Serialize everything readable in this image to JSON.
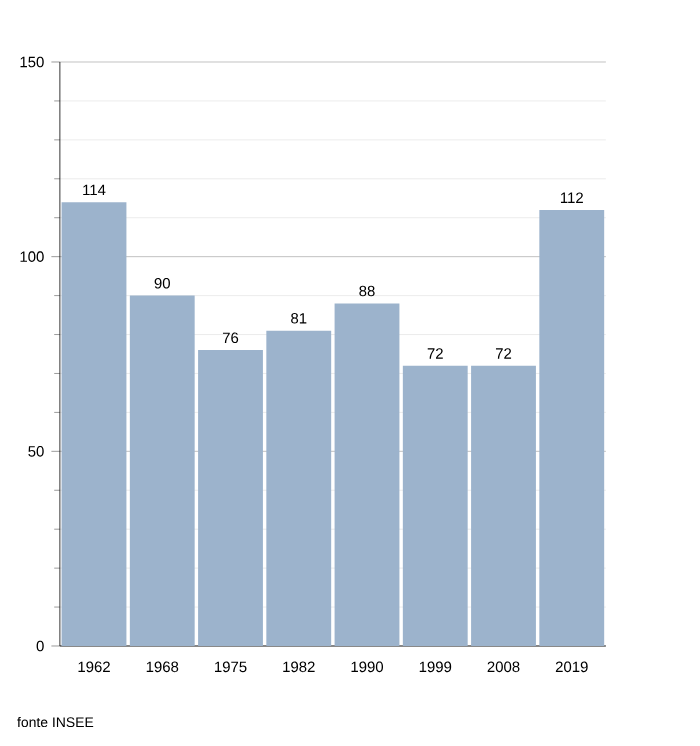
{
  "chart_data": {
    "type": "bar",
    "categories": [
      "1962",
      "1968",
      "1975",
      "1982",
      "1990",
      "1999",
      "2008",
      "2019"
    ],
    "values": [
      114,
      90,
      76,
      81,
      88,
      72,
      72,
      112
    ],
    "color": "#9cb3cc",
    "ylim": [
      0,
      150
    ],
    "yticks": [
      0,
      50,
      100,
      150
    ],
    "grid": "y",
    "data_labels": true,
    "annotations": [
      "fonte INSEE"
    ]
  }
}
